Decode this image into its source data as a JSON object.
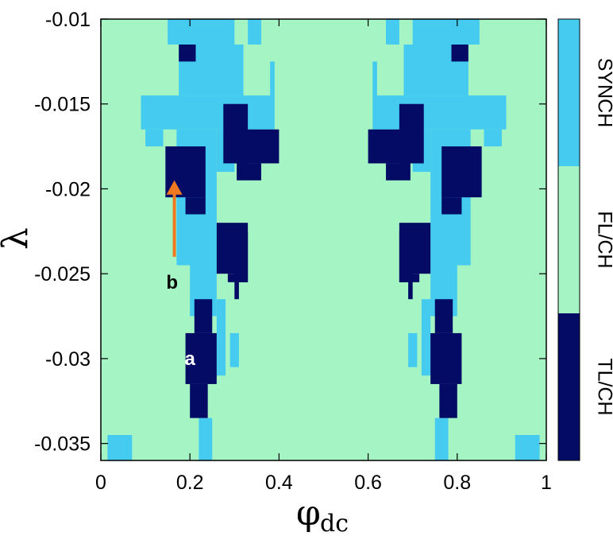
{
  "chart_data": {
    "type": "heatmap",
    "title": "",
    "xlabel": "φ",
    "xlabel_sub": "dc",
    "ylabel": "λ",
    "xlim": [
      0,
      1
    ],
    "ylim": [
      -0.036,
      -0.01
    ],
    "x_ticks": [
      0,
      0.2,
      0.4,
      0.6,
      0.8,
      1
    ],
    "x_tick_labels": [
      "0",
      "0.2",
      "0.4",
      "0.6",
      "0.8",
      "1"
    ],
    "y_ticks": [
      -0.01,
      -0.015,
      -0.02,
      -0.025,
      -0.03,
      -0.035
    ],
    "y_tick_labels": [
      "-0.01",
      "-0.015",
      "-0.02",
      "-0.025",
      "-0.03",
      "-0.035"
    ],
    "grid": false,
    "symmetry": "mirror about φ_dc = 0.5",
    "categories": [
      {
        "name": "SYNCH",
        "color": "#45cbef"
      },
      {
        "name": "FL/CH",
        "color": "#a4f4c4"
      },
      {
        "name": "TL/CH",
        "color": "#030b64"
      }
    ],
    "background_category": "FL/CH",
    "regions": [
      {
        "category": "SYNCH",
        "x": [
          0.15,
          0.3
        ],
        "y": [
          -0.01,
          -0.0115
        ]
      },
      {
        "category": "SYNCH",
        "x": [
          0.175,
          0.32
        ],
        "y": [
          -0.0115,
          -0.0145
        ]
      },
      {
        "category": "SYNCH",
        "x": [
          0.09,
          0.39
        ],
        "y": [
          -0.0145,
          -0.0165
        ]
      },
      {
        "category": "SYNCH",
        "x": [
          0.1,
          0.14
        ],
        "y": [
          -0.0165,
          -0.0175
        ]
      },
      {
        "category": "SYNCH",
        "x": [
          0.26,
          0.3
        ],
        "y": [
          -0.0165,
          -0.019
        ]
      },
      {
        "category": "SYNCH",
        "x": [
          0.17,
          0.26
        ],
        "y": [
          -0.0165,
          -0.0245
        ]
      },
      {
        "category": "SYNCH",
        "x": [
          0.33,
          0.36
        ],
        "y": [
          -0.01,
          -0.0115
        ]
      },
      {
        "category": "SYNCH",
        "x": [
          0.38,
          0.39
        ],
        "y": [
          -0.0125,
          -0.0145
        ]
      },
      {
        "category": "SYNCH",
        "x": [
          0.2,
          0.26
        ],
        "y": [
          -0.0245,
          -0.0275
        ]
      },
      {
        "category": "SYNCH",
        "x": [
          0.26,
          0.28
        ],
        "y": [
          -0.0265,
          -0.031
        ]
      },
      {
        "category": "SYNCH",
        "x": [
          0.29,
          0.31
        ],
        "y": [
          -0.0285,
          -0.0305
        ]
      },
      {
        "category": "SYNCH",
        "x": [
          0.22,
          0.25
        ],
        "y": [
          -0.0335,
          -0.036
        ]
      },
      {
        "category": "SYNCH",
        "x": [
          0.015,
          0.07
        ],
        "y": [
          -0.0345,
          -0.036
        ]
      },
      {
        "category": "TL/CH",
        "x": [
          0.175,
          0.213
        ],
        "y": [
          -0.0115,
          -0.0125
        ]
      },
      {
        "category": "TL/CH",
        "x": [
          0.275,
          0.33
        ],
        "y": [
          -0.015,
          -0.0185
        ]
      },
      {
        "category": "TL/CH",
        "x": [
          0.3,
          0.4
        ],
        "y": [
          -0.0165,
          -0.0185
        ]
      },
      {
        "category": "TL/CH",
        "x": [
          0.305,
          0.36
        ],
        "y": [
          -0.0185,
          -0.0195
        ]
      },
      {
        "category": "TL/CH",
        "x": [
          0.145,
          0.235
        ],
        "y": [
          -0.0175,
          -0.0205
        ]
      },
      {
        "category": "TL/CH",
        "x": [
          0.19,
          0.235
        ],
        "y": [
          -0.0205,
          -0.0215
        ]
      },
      {
        "category": "TL/CH",
        "x": [
          0.26,
          0.33
        ],
        "y": [
          -0.022,
          -0.025
        ]
      },
      {
        "category": "TL/CH",
        "x": [
          0.3,
          0.33
        ],
        "y": [
          -0.0225,
          -0.0255
        ]
      },
      {
        "category": "TL/CH",
        "x": [
          0.285,
          0.33
        ],
        "y": [
          -0.025,
          -0.0255
        ]
      },
      {
        "category": "TL/CH",
        "x": [
          0.3,
          0.31
        ],
        "y": [
          -0.0255,
          -0.0265
        ]
      },
      {
        "category": "TL/CH",
        "x": [
          0.21,
          0.25
        ],
        "y": [
          -0.0265,
          -0.0285
        ]
      },
      {
        "category": "TL/CH",
        "x": [
          0.19,
          0.26
        ],
        "y": [
          -0.0285,
          -0.0315
        ]
      },
      {
        "category": "TL/CH",
        "x": [
          0.2,
          0.24
        ],
        "y": [
          -0.0315,
          -0.0335
        ]
      }
    ],
    "annotations": [
      {
        "text": "a",
        "x": 0.2,
        "y": -0.03,
        "color": "#ffffff"
      },
      {
        "text": "b",
        "x": 0.16,
        "y": -0.0255,
        "color": "#000000",
        "arrow": {
          "from": [
            0.165,
            -0.024
          ],
          "to": [
            0.165,
            -0.0195
          ],
          "color": "#f07820"
        }
      }
    ],
    "colorbar": {
      "position": "right",
      "labels": [
        "SYNCH",
        "FL/CH",
        "TL/CH"
      ],
      "orientation": "rotated"
    }
  }
}
